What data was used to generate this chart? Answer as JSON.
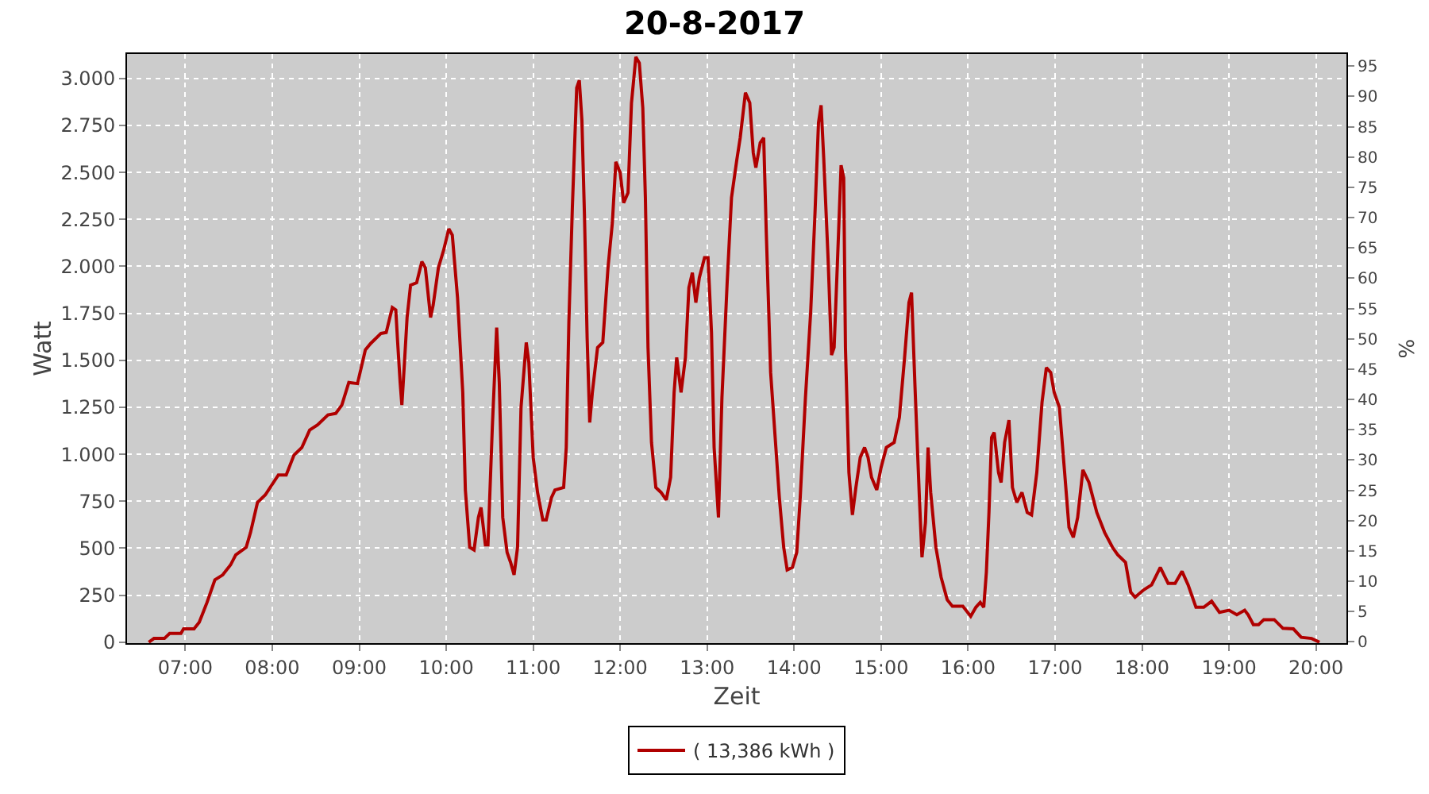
{
  "chart_data": {
    "type": "line",
    "title": "20-8-2017",
    "xlabel": "Zeit",
    "ylabel": "Watt",
    "y2label": "%",
    "xlim": [
      6.33,
      20.35
    ],
    "ylim": [
      -5,
      3130
    ],
    "y2lim": [
      -0.2,
      97
    ],
    "xticks": [
      {
        "value": 7,
        "label": "07:00"
      },
      {
        "value": 8,
        "label": "08:00"
      },
      {
        "value": 9,
        "label": "09:00"
      },
      {
        "value": 10,
        "label": "10:00"
      },
      {
        "value": 11,
        "label": "11:00"
      },
      {
        "value": 12,
        "label": "12:00"
      },
      {
        "value": 13,
        "label": "13:00"
      },
      {
        "value": 14,
        "label": "14:00"
      },
      {
        "value": 15,
        "label": "15:00"
      },
      {
        "value": 16,
        "label": "16:00"
      },
      {
        "value": 17,
        "label": "17:00"
      },
      {
        "value": 18,
        "label": "18:00"
      },
      {
        "value": 19,
        "label": "19:00"
      },
      {
        "value": 20,
        "label": "20:00"
      }
    ],
    "yticks": [
      0,
      250,
      500,
      750,
      {
        "value": 1000,
        "label": "1.000"
      },
      {
        "value": 1250,
        "label": "1.250"
      },
      {
        "value": 1500,
        "label": "1.500"
      },
      {
        "value": 1750,
        "label": "1.750"
      },
      {
        "value": 2000,
        "label": "2.000"
      },
      {
        "value": 2250,
        "label": "2.250"
      },
      {
        "value": 2500,
        "label": "2.500"
      },
      {
        "value": 2750,
        "label": "2.750"
      },
      {
        "value": 3000,
        "label": "3.000"
      }
    ],
    "y2ticks": [
      0,
      5,
      10,
      15,
      20,
      25,
      30,
      35,
      40,
      45,
      50,
      55,
      60,
      65,
      70,
      75,
      80,
      85,
      90,
      95
    ],
    "grid": true,
    "legend": "bottom",
    "line_style": "solid",
    "x": [
      6.58,
      6.64,
      6.76,
      6.82,
      6.95,
      6.98,
      7.1,
      7.16,
      7.25,
      7.34,
      7.43,
      7.52,
      7.58,
      7.7,
      7.75,
      7.83,
      7.92,
      8.07,
      8.16,
      8.25,
      8.34,
      8.43,
      8.52,
      8.64,
      8.73,
      8.8,
      8.88,
      8.98,
      9.07,
      9.13,
      9.25,
      9.31,
      9.38,
      9.42,
      9.44,
      9.47,
      9.49,
      9.52,
      9.55,
      9.59,
      9.66,
      9.72,
      9.76,
      9.82,
      9.85,
      9.91,
      9.97,
      10.03,
      10.07,
      10.13,
      10.19,
      10.22,
      10.27,
      10.32,
      10.37,
      10.4,
      10.45,
      10.48,
      10.53,
      10.58,
      10.61,
      10.65,
      10.7,
      10.74,
      10.78,
      10.82,
      10.86,
      10.92,
      10.95,
      11,
      11.05,
      11.11,
      11.15,
      11.21,
      11.25,
      11.35,
      11.38,
      11.41,
      11.45,
      11.5,
      11.53,
      11.56,
      11.59,
      11.62,
      11.65,
      11.68,
      11.74,
      11.8,
      11.86,
      11.91,
      11.95,
      12,
      12.04,
      12.09,
      12.13,
      12.18,
      12.22,
      12.26,
      12.29,
      12.32,
      12.36,
      12.41,
      12.47,
      12.53,
      12.58,
      12.62,
      12.65,
      12.7,
      12.75,
      12.79,
      12.83,
      12.87,
      12.91,
      12.97,
      13.01,
      13.05,
      13.08,
      13.13,
      13.17,
      13.23,
      13.28,
      13.34,
      13.38,
      13.44,
      13.49,
      13.53,
      13.56,
      13.61,
      13.65,
      13.68,
      13.73,
      13.79,
      13.83,
      13.88,
      13.92,
      13.98,
      14.03,
      14.07,
      14.13,
      14.19,
      14.24,
      14.28,
      14.31,
      14.34,
      14.39,
      14.43,
      14.46,
      14.5,
      14.54,
      14.57,
      14.59,
      14.63,
      14.67,
      14.71,
      14.76,
      14.81,
      14.85,
      14.89,
      14.95,
      15,
      15.06,
      15.15,
      15.21,
      15.27,
      15.32,
      15.35,
      15.39,
      15.44,
      15.47,
      15.51,
      15.54,
      15.57,
      15.63,
      15.69,
      15.76,
      15.82,
      15.94,
      16.03,
      16.09,
      16.14,
      16.18,
      16.21,
      16.24,
      16.27,
      16.3,
      16.35,
      16.38,
      16.42,
      16.47,
      16.51,
      16.56,
      16.62,
      16.68,
      16.73,
      16.79,
      16.85,
      16.9,
      16.95,
      16.99,
      17.05,
      17.11,
      17.16,
      17.21,
      17.26,
      17.32,
      17.39,
      17.48,
      17.57,
      17.66,
      17.72,
      17.81,
      17.87,
      17.92,
      18.02,
      18.11,
      18.21,
      18.3,
      18.38,
      18.46,
      18.53,
      18.62,
      18.71,
      18.8,
      18.89,
      19,
      19.09,
      19.18,
      19.22,
      19.28,
      19.34,
      19.4,
      19.52,
      19.62,
      19.74,
      19.83,
      19.95,
      20.04
    ],
    "series": [
      {
        "name": "( 13,386 kWh )",
        "color": "#b00000",
        "values": [
          0,
          20,
          20,
          47,
          47,
          71,
          71,
          106,
          212,
          332,
          358,
          411,
          465,
          505,
          584,
          744,
          784,
          890,
          890,
          996,
          1036,
          1129,
          1156,
          1209,
          1217,
          1262,
          1382,
          1376,
          1555,
          1589,
          1643,
          1648,
          1781,
          1768,
          1608,
          1382,
          1262,
          1488,
          1728,
          1900,
          1913,
          2025,
          1993,
          1728,
          1794,
          1993,
          2086,
          2200,
          2166,
          1833,
          1329,
          810,
          505,
          491,
          664,
          717,
          518,
          518,
          1143,
          1674,
          1382,
          664,
          478,
          425,
          358,
          505,
          1249,
          1595,
          1488,
          983,
          797,
          651,
          651,
          770,
          810,
          823,
          1036,
          1701,
          2312,
          2950,
          2990,
          2777,
          2259,
          1621,
          1169,
          1329,
          1568,
          1595,
          1993,
          2232,
          2556,
          2498,
          2338,
          2391,
          2870,
          3114,
          3082,
          2843,
          2365,
          1568,
          1063,
          823,
          797,
          757,
          877,
          1329,
          1515,
          1329,
          1515,
          1887,
          1966,
          1807,
          1940,
          2046,
          2046,
          1648,
          1036,
          664,
          1302,
          1913,
          2365,
          2564,
          2684,
          2924,
          2870,
          2604,
          2525,
          2658,
          2684,
          2179,
          1435,
          1036,
          770,
          505,
          385,
          398,
          478,
          770,
          1302,
          1754,
          2285,
          2764,
          2857,
          2578,
          2046,
          1528,
          1568,
          2046,
          2538,
          2471,
          1568,
          903,
          677,
          823,
          983,
          1036,
          983,
          877,
          810,
          930,
          1036,
          1063,
          1196,
          1515,
          1807,
          1860,
          1355,
          770,
          452,
          637,
          1036,
          797,
          505,
          345,
          226,
          191,
          191,
          138,
          186,
          212,
          186,
          372,
          690,
          1089,
          1116,
          903,
          850,
          1063,
          1182,
          823,
          744,
          797,
          690,
          677,
          903,
          1276,
          1461,
          1435,
          1329,
          1249,
          903,
          611,
          558,
          664,
          917,
          850,
          690,
          584,
          505,
          465,
          425,
          266,
          239,
          279,
          305,
          398,
          313,
          313,
          377,
          305,
          186,
          186,
          218,
          159,
          170,
          146,
          170,
          146,
          93,
          93,
          120,
          120,
          74,
          71,
          26,
          20,
          0
        ]
      }
    ]
  }
}
